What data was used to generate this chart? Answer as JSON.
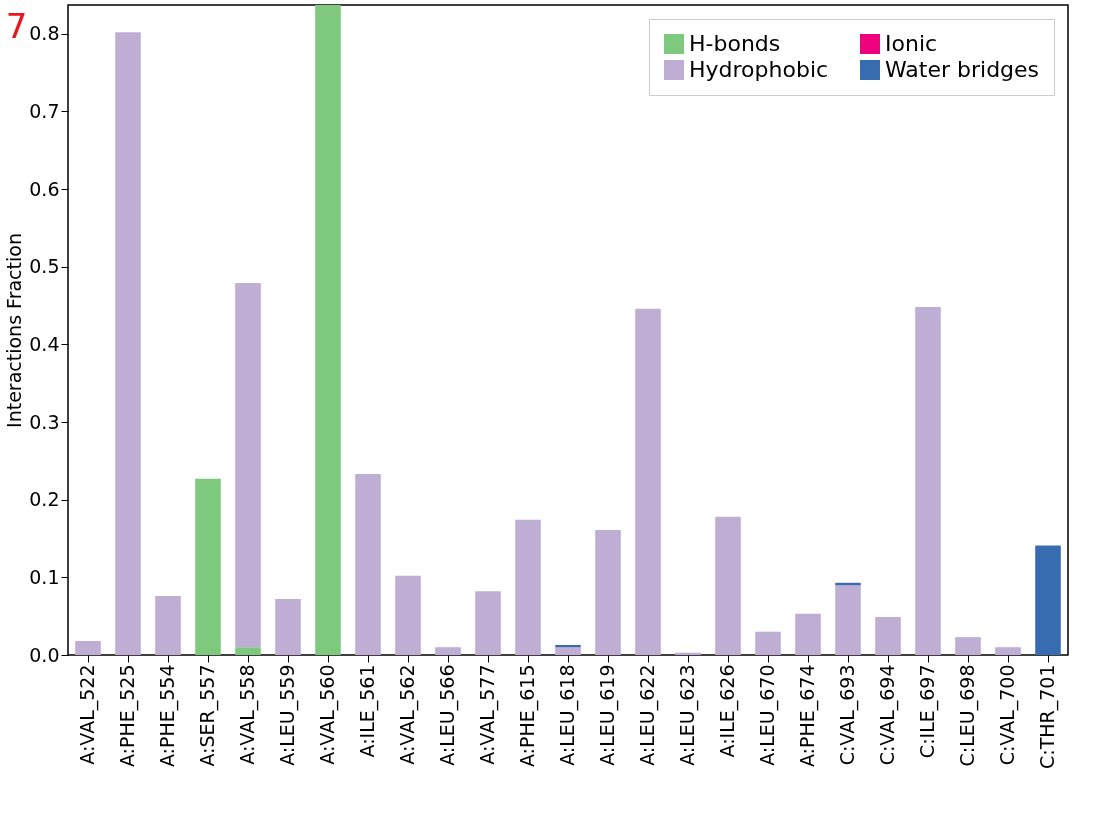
{
  "chart_data": {
    "type": "bar",
    "stacked": true,
    "ylabel": "Interactions Fraction",
    "annotations": [
      "7"
    ],
    "categories": [
      "A:VAL_522",
      "A:PHE_525",
      "A:PHE_554",
      "A:SER_557",
      "A:VAL_558",
      "A:LEU_559",
      "A:VAL_560",
      "A:ILE_561",
      "A:VAL_562",
      "A:LEU_566",
      "A:VAL_577",
      "A:PHE_615",
      "A:LEU_618",
      "A:LEU_619",
      "A:LEU_622",
      "A:LEU_623",
      "A:ILE_626",
      "A:LEU_670",
      "A:PHE_674",
      "C:VAL_693",
      "C:VAL_694",
      "C:ILE_697",
      "C:LEU_698",
      "C:VAL_700",
      "C:THR_701"
    ],
    "series": [
      {
        "name": "H-bonds",
        "color": "#7fc97f",
        "values": [
          0,
          0,
          0,
          0.227,
          0.01,
          0,
          0.837,
          0,
          0,
          0,
          0,
          0,
          0,
          0,
          0,
          0,
          0,
          0,
          0,
          0,
          0,
          0,
          0,
          0,
          0
        ]
      },
      {
        "name": "Hydrophobic",
        "color": "#beaed4",
        "values": [
          0.018,
          0.802,
          0.076,
          0,
          0.469,
          0.072,
          0,
          0.233,
          0.102,
          0.01,
          0.082,
          0.174,
          0.01,
          0.161,
          0.446,
          0.003,
          0.178,
          0.03,
          0.053,
          0.09,
          0.049,
          0.448,
          0.023,
          0.01,
          0
        ]
      },
      {
        "name": "Ionic",
        "color": "#f0027f",
        "values": [
          0,
          0,
          0,
          0,
          0,
          0,
          0,
          0,
          0,
          0,
          0,
          0,
          0,
          0,
          0,
          0,
          0,
          0,
          0,
          0,
          0,
          0,
          0,
          0,
          0
        ]
      },
      {
        "name": "Water bridges",
        "color": "#386cb0",
        "values": [
          0,
          0,
          0,
          0,
          0,
          0,
          0,
          0,
          0,
          0,
          0,
          0,
          0.003,
          0,
          0,
          0,
          0,
          0,
          0,
          0.003,
          0,
          0,
          0,
          0,
          0.141
        ]
      }
    ],
    "ylim": [
      0,
      0.837
    ],
    "yticks": [
      {
        "value": 0,
        "label": "0.0"
      },
      0.1,
      0.2,
      0.3,
      0.4,
      0.5,
      0.6,
      0.7,
      0.8
    ],
    "grid": false,
    "legend": "top right"
  }
}
